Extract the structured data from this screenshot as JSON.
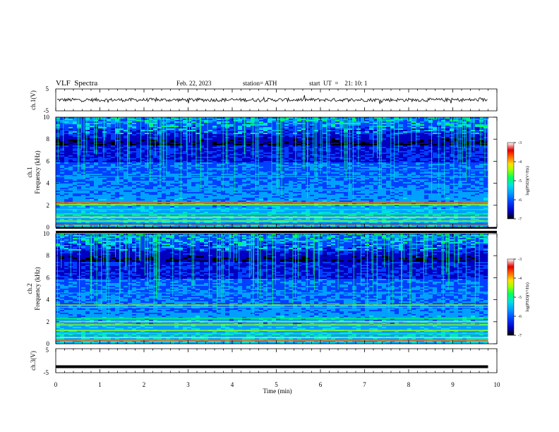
{
  "header": {
    "title": "VLF  Spectra",
    "date": "Feb. 22, 2023",
    "station": "station= ATH",
    "start": "start  UT  =    21: 10: 1"
  },
  "chart_data": [
    {
      "type": "line",
      "panel": "ch1-waveform",
      "ylabel": "ch.1(V)",
      "ylim": [
        -5,
        5
      ],
      "xlim": [
        0,
        10
      ],
      "ytick_labels": [
        "5",
        "-5"
      ],
      "note_values": "waveform noise around ~0 V with amplitude about ±1 V, ending near 9.8 min"
    },
    {
      "type": "heatmap",
      "panel": "ch1-spectrogram",
      "ylabel": "ch.1\nFrequency  (kHz)",
      "ylim": [
        0,
        10
      ],
      "xlim": [
        0,
        10
      ],
      "ytick_labels": [
        "0",
        "2",
        "4",
        "6",
        "8",
        "10"
      ],
      "colorbar": {
        "label": "log(PSD)(V²/Hz)",
        "range": [
          -7,
          -3
        ],
        "tick_labels": [
          "-3",
          "-4",
          "-5",
          "-6",
          "-7"
        ]
      }
    },
    {
      "type": "heatmap",
      "panel": "ch2-spectrogram",
      "ylabel": "ch.2\nFrequency  (kHz)",
      "ylim": [
        0,
        10
      ],
      "xlim": [
        0,
        10
      ],
      "ytick_labels": [
        "0",
        "2",
        "4",
        "6",
        "8",
        "10"
      ],
      "colorbar": {
        "label": "log(PSD)(V²/Hz)",
        "range": [
          -7,
          -3
        ],
        "tick_labels": [
          "-3",
          "-4",
          "-5",
          "-6",
          "-7"
        ]
      }
    },
    {
      "type": "line",
      "panel": "ch3-waveform",
      "ylabel": "ch.3(V)",
      "ylim": [
        -5,
        5
      ],
      "xlim": [
        0,
        10
      ],
      "ytick_labels": [
        "5",
        "-5"
      ],
      "value_approx": -2.5
    }
  ],
  "x_axis": {
    "label": "Time  (min)",
    "tick_labels": [
      "0",
      "1",
      "2",
      "3",
      "4",
      "5",
      "6",
      "7",
      "8",
      "9",
      "10"
    ],
    "data_end": 9.8
  },
  "colors": {
    "colormap": [
      "#000000",
      "#0000c0",
      "#0040ff",
      "#00a0ff",
      "#00e0e0",
      "#00ff60",
      "#a0ff00",
      "#ffe000",
      "#ff6000",
      "#e00000",
      "#ffffff"
    ]
  }
}
